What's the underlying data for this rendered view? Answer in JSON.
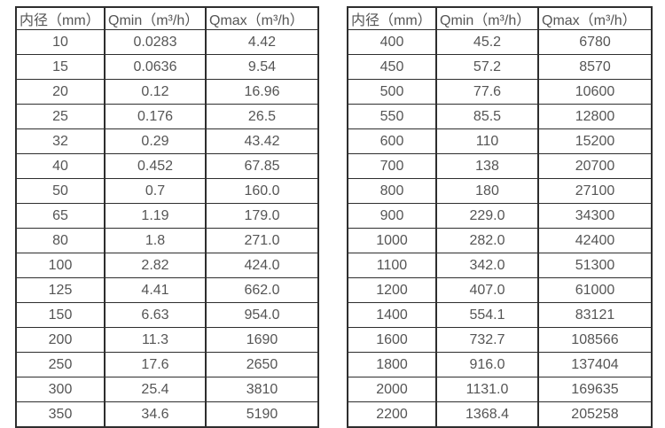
{
  "colors": {
    "border": "#2e2e2e",
    "text": "#555555",
    "background": "#ffffff"
  },
  "tables": [
    {
      "name": "small-diameters",
      "headers": [
        "内径（mm）",
        "Qmin（m³/h）",
        "Qmax（m³/h）"
      ],
      "rows": [
        [
          "10",
          "0.0283",
          "4.42"
        ],
        [
          "15",
          "0.0636",
          "9.54"
        ],
        [
          "20",
          "0.12",
          "16.96"
        ],
        [
          "25",
          "0.176",
          "26.5"
        ],
        [
          "32",
          "0.29",
          "43.42"
        ],
        [
          "40",
          "0.452",
          "67.85"
        ],
        [
          "50",
          "0.7",
          "160.0"
        ],
        [
          "65",
          "1.19",
          "179.0"
        ],
        [
          "80",
          "1.8",
          "271.0"
        ],
        [
          "100",
          "2.82",
          "424.0"
        ],
        [
          "125",
          "4.41",
          "662.0"
        ],
        [
          "150",
          "6.63",
          "954.0"
        ],
        [
          "200",
          "11.3",
          "1690"
        ],
        [
          "250",
          "17.6",
          "2650"
        ],
        [
          "300",
          "25.4",
          "3810"
        ],
        [
          "350",
          "34.6",
          "5190"
        ]
      ]
    },
    {
      "name": "large-diameters",
      "headers": [
        "内径（mm）",
        "Qmin（m³/h）",
        "Qmax（m³/h）"
      ],
      "rows": [
        [
          "400",
          "45.2",
          "6780"
        ],
        [
          "450",
          "57.2",
          "8570"
        ],
        [
          "500",
          "77.6",
          "10600"
        ],
        [
          "550",
          "85.5",
          "12800"
        ],
        [
          "600",
          "110",
          "15200"
        ],
        [
          "700",
          "138",
          "20700"
        ],
        [
          "800",
          "180",
          "27100"
        ],
        [
          "900",
          "229.0",
          "34300"
        ],
        [
          "1000",
          "282.0",
          "42400"
        ],
        [
          "1100",
          "342.0",
          "51300"
        ],
        [
          "1200",
          "407.0",
          "61000"
        ],
        [
          "1400",
          "554.1",
          "83121"
        ],
        [
          "1600",
          "732.7",
          "108566"
        ],
        [
          "1800",
          "916.0",
          "137404"
        ],
        [
          "2000",
          "1131.0",
          "169635"
        ],
        [
          "2200",
          "1368.4",
          "205258"
        ]
      ]
    }
  ]
}
